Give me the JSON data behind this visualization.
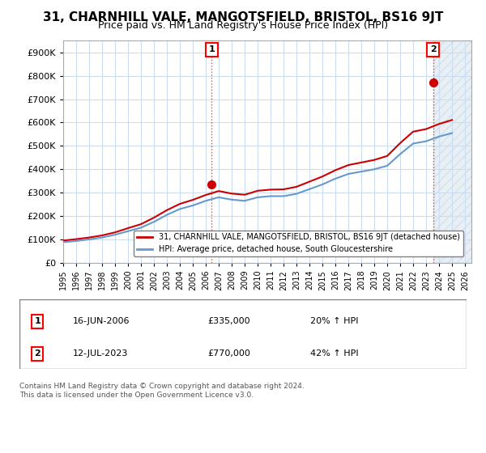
{
  "title": "31, CHARNHILL VALE, MANGOTSFIELD, BRISTOL, BS16 9JT",
  "subtitle": "Price paid vs. HM Land Registry's House Price Index (HPI)",
  "title_fontsize": 11,
  "subtitle_fontsize": 9,
  "ylabel": "",
  "ylim": [
    0,
    950000
  ],
  "yticks": [
    0,
    100000,
    200000,
    300000,
    400000,
    500000,
    600000,
    700000,
    800000,
    900000
  ],
  "ytick_labels": [
    "£0",
    "£100K",
    "£200K",
    "£300K",
    "£400K",
    "£500K",
    "£600K",
    "£700K",
    "£800K",
    "£900K"
  ],
  "xlim_start": 1995.0,
  "xlim_end": 2026.5,
  "red_line_color": "#cc0000",
  "blue_line_color": "#6699cc",
  "sale1_x": 2006.46,
  "sale1_y": 335000,
  "sale2_x": 2023.54,
  "sale2_y": 770000,
  "sale1_label": "1",
  "sale2_label": "2",
  "legend_entry1": "31, CHARNHILL VALE, MANGOTSFIELD, BRISTOL, BS16 9JT (detached house)",
  "legend_entry2": "HPI: Average price, detached house, South Gloucestershire",
  "table_row1": [
    "1",
    "16-JUN-2006",
    "£335,000",
    "20% ↑ HPI"
  ],
  "table_row2": [
    "2",
    "12-JUL-2023",
    "£770,000",
    "42% ↑ HPI"
  ],
  "footer1": "Contains HM Land Registry data © Crown copyright and database right 2024.",
  "footer2": "This data is licensed under the Open Government Licence v3.0.",
  "background_color": "#ffffff",
  "plot_bg_color": "#ffffff",
  "grid_color": "#ccddee"
}
